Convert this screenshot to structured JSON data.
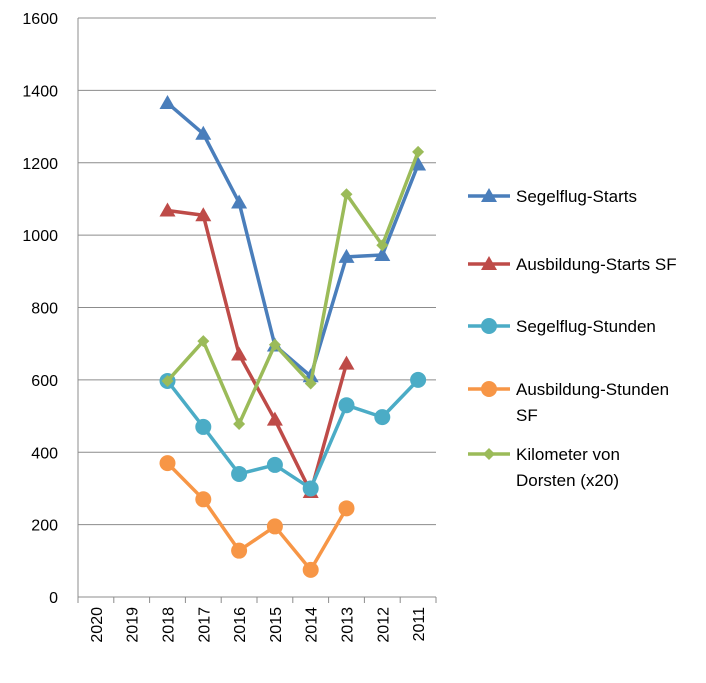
{
  "chart_data": {
    "type": "line",
    "categories": [
      "2020",
      "2019",
      "2018",
      "2017",
      "2016",
      "2015",
      "2014",
      "2013",
      "2012",
      "2011"
    ],
    "ylim": [
      0,
      1600
    ],
    "y_ticks": [
      0,
      200,
      400,
      600,
      800,
      1000,
      1200,
      1400,
      1600
    ],
    "grid": "horizontal",
    "legend_position": "right",
    "series": [
      {
        "name": "Segelflug-Starts",
        "legend_lines": [
          "Segelflug-Starts"
        ],
        "color": "#4A7EBB",
        "marker": "triangle",
        "values": [
          null,
          null,
          1365,
          1280,
          1090,
          695,
          610,
          940,
          945,
          1195
        ]
      },
      {
        "name": "Ausbildung-Starts SF",
        "legend_lines": [
          "Ausbildung-Starts SF"
        ],
        "color": "#BE4B48",
        "marker": "triangle",
        "values": [
          null,
          null,
          1068,
          1055,
          670,
          490,
          290,
          645,
          null,
          null
        ]
      },
      {
        "name": "Segelflug-Stunden",
        "legend_lines": [
          "Segelflug-Stunden"
        ],
        "color": "#4BACC6",
        "marker": "circle",
        "values": [
          null,
          null,
          597,
          470,
          340,
          365,
          300,
          530,
          497,
          600
        ]
      },
      {
        "name": "Ausbildung-Stunden SF",
        "legend_lines": [
          "Ausbildung-Stunden",
          "SF"
        ],
        "color": "#F79646",
        "marker": "circle",
        "values": [
          null,
          null,
          370,
          270,
          128,
          195,
          75,
          245,
          null,
          null
        ]
      },
      {
        "name": "Kilometer von Dorsten (x20)",
        "legend_lines": [
          "Kilometer von",
          "Dorsten (x20)"
        ],
        "color": "#9BBB59",
        "marker": "diamond",
        "values": [
          null,
          null,
          597,
          707,
          478,
          697,
          590,
          1113,
          972,
          1230
        ]
      }
    ]
  }
}
